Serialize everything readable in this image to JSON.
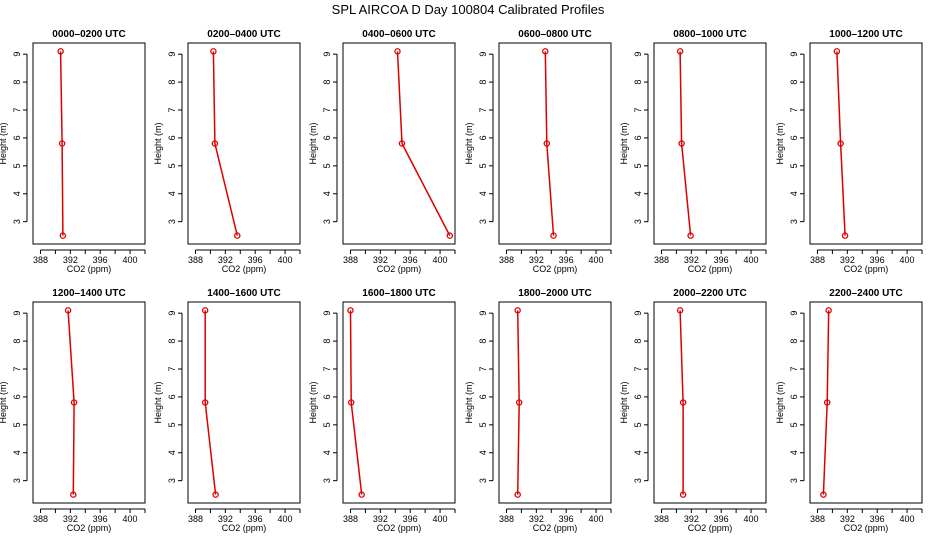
{
  "figure": {
    "title": "SPL AIRCOA D  Day 100804  Calibrated Profiles"
  },
  "chart_data": {
    "type": "line",
    "title": "SPL AIRCOA D  Day 100804  Calibrated Profiles",
    "xlabel": "CO2 (ppm)",
    "ylabel": "Height (m)",
    "xlim": [
      387,
      402
    ],
    "ylim": [
      2.2,
      9.4
    ],
    "xticks": [
      388,
      392,
      396,
      400
    ],
    "yticks": [
      3,
      4,
      5,
      6,
      7,
      8,
      9
    ],
    "heights": [
      9.1,
      5.8,
      2.5
    ],
    "grid": false,
    "panels": [
      {
        "title": "0000–0200 UTC",
        "co2": [
          390.7,
          390.9,
          391.0
        ]
      },
      {
        "title": "0200–0400 UTC",
        "co2": [
          390.4,
          390.6,
          393.6
        ]
      },
      {
        "title": "0400–0600 UTC",
        "co2": [
          394.3,
          394.9,
          401.3
        ]
      },
      {
        "title": "0600–0800 UTC",
        "co2": [
          393.2,
          393.4,
          394.3
        ]
      },
      {
        "title": "0800–1000 UTC",
        "co2": [
          390.5,
          390.7,
          391.9
        ]
      },
      {
        "title": "1000–1200 UTC",
        "co2": [
          390.6,
          391.1,
          391.7
        ]
      },
      {
        "title": "1200–1400 UTC",
        "co2": [
          391.7,
          392.5,
          392.4
        ]
      },
      {
        "title": "1400–1600 UTC",
        "co2": [
          389.3,
          389.3,
          390.7
        ]
      },
      {
        "title": "1600–1800 UTC",
        "co2": [
          388.0,
          388.1,
          389.5
        ]
      },
      {
        "title": "1800–2000 UTC",
        "co2": [
          389.5,
          389.7,
          389.5
        ]
      },
      {
        "title": "2000–2200 UTC",
        "co2": [
          390.5,
          390.9,
          390.9
        ]
      },
      {
        "title": "2200–2400 UTC",
        "co2": [
          389.5,
          389.3,
          388.8
        ]
      }
    ]
  }
}
